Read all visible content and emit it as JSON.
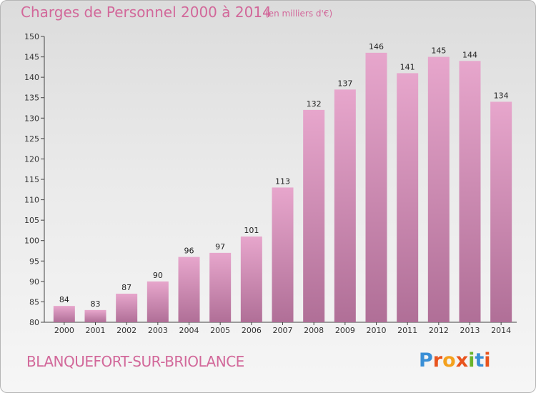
{
  "header": {
    "title": "Charges de Personnel 2000 à 2014",
    "subtitle": "(en milliers d'€)"
  },
  "footer": {
    "city": "BLANQUEFORT-SUR-BRIOLANCE",
    "logo_letters": [
      "P",
      "r",
      "o",
      "x",
      "i",
      "t",
      "i"
    ],
    "logo_colors": [
      "#3a8fd6",
      "#e8541e",
      "#f4a11d",
      "#e8541e",
      "#6ab42d",
      "#3a8fd6",
      "#e8541e"
    ]
  },
  "colors": {
    "bar_top": "#e7a6cc",
    "bar_bottom": "#b06f97",
    "title": "#d2689a"
  },
  "chart_data": {
    "type": "bar",
    "categories": [
      "2000",
      "2001",
      "2002",
      "2003",
      "2004",
      "2005",
      "2006",
      "2007",
      "2008",
      "2009",
      "2010",
      "2011",
      "2012",
      "2013",
      "2014"
    ],
    "values": [
      84,
      83,
      87,
      90,
      96,
      97,
      101,
      113,
      132,
      137,
      146,
      141,
      145,
      144,
      134
    ],
    "yticks": [
      80,
      85,
      90,
      95,
      100,
      105,
      110,
      115,
      120,
      125,
      130,
      135,
      140,
      145,
      150
    ],
    "ylim": [
      80,
      150
    ],
    "grid": false,
    "data_labels": true
  }
}
